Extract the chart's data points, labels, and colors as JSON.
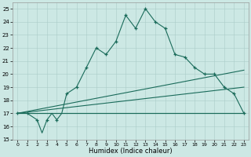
{
  "xlabel": "Humidex (Indice chaleur)",
  "bg_color": "#cce8e4",
  "grid_color": "#aaccc8",
  "line_color": "#1a6b5a",
  "xlim": [
    -0.5,
    23.5
  ],
  "ylim": [
    15,
    25.5
  ],
  "yticks": [
    15,
    16,
    17,
    18,
    19,
    20,
    21,
    22,
    23,
    24,
    25
  ],
  "xticks": [
    0,
    1,
    2,
    3,
    4,
    5,
    6,
    7,
    8,
    9,
    10,
    11,
    12,
    13,
    14,
    15,
    16,
    17,
    18,
    19,
    20,
    21,
    22,
    23
  ],
  "main_x": [
    0,
    1,
    2,
    2.5,
    3,
    3.5,
    4,
    4.5,
    5,
    6,
    7,
    8,
    9,
    10,
    11,
    12,
    13,
    14,
    15,
    16,
    17,
    18,
    19,
    20,
    21,
    22,
    23
  ],
  "main_y": [
    17,
    17,
    16.5,
    15.5,
    16.5,
    17.0,
    16.5,
    17.0,
    18.5,
    19.0,
    20.5,
    22.0,
    21.5,
    22.5,
    24.5,
    23.5,
    25.0,
    24.0,
    23.5,
    21.5,
    21.3,
    20.5,
    20.0,
    20.0,
    19.0,
    18.5,
    17.0
  ],
  "flat_y": 17.0,
  "slope1_y0": 17.0,
  "slope1_y1": 17.0,
  "slope2_y0": 17.0,
  "slope2_y1": 20.3,
  "slope3_y0": 17.0,
  "slope3_y1": 19.0,
  "marker_x": [
    0,
    1,
    2,
    3,
    4,
    5,
    6,
    7,
    8,
    9,
    10,
    11,
    12,
    13,
    14,
    15,
    16,
    17,
    18,
    19,
    20,
    21,
    22,
    23
  ],
  "marker_y": [
    17,
    17,
    16.5,
    16.5,
    16.5,
    18.5,
    19.0,
    20.5,
    22.0,
    21.5,
    22.5,
    24.5,
    23.5,
    25.0,
    24.0,
    23.5,
    21.5,
    21.3,
    20.5,
    20.0,
    20.0,
    19.0,
    18.5,
    17.0
  ],
  "figsize": [
    3.2,
    2.0
  ],
  "dpi": 100
}
